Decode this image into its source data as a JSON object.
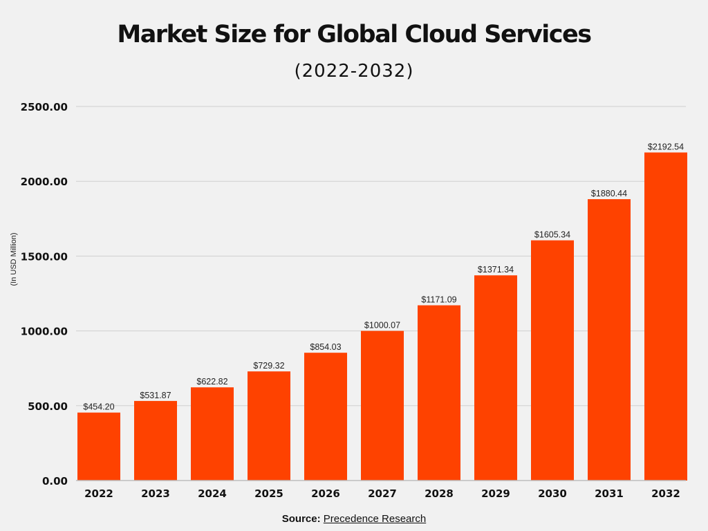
{
  "chart_data": {
    "type": "bar",
    "title": "Market Size for Global Cloud Services",
    "subtitle": "(2022-2032)",
    "ylabel": "(In USD Million)",
    "xlabel": "",
    "categories": [
      "2022",
      "2023",
      "2024",
      "2025",
      "2026",
      "2027",
      "2028",
      "2029",
      "2030",
      "2031",
      "2032"
    ],
    "values": [
      454.2,
      531.87,
      622.82,
      729.32,
      854.03,
      1000.07,
      1171.09,
      1371.34,
      1605.34,
      1880.44,
      2192.54
    ],
    "data_labels": [
      "$454.20",
      "$531.87",
      "$622.82",
      "$729.32",
      "$854.03",
      "$1000.07",
      "$1171.09",
      "$1371.34",
      "$1605.34",
      "$1880.44",
      "$2192.54"
    ],
    "ylim": [
      0,
      2500
    ],
    "yticks": [
      "0.00",
      "500.00",
      "1000.00",
      "1500.00",
      "2000.00",
      "2500.00"
    ],
    "grid": true,
    "bar_color": "#fe4200"
  },
  "source": {
    "label": "Source:",
    "link_text": "Precedence Research"
  }
}
